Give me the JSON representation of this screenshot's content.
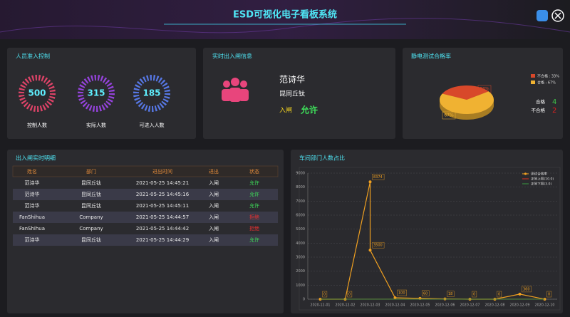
{
  "header": {
    "title": "ESD可视化电子看板系统"
  },
  "access_control": {
    "title": "人员准入控制",
    "gauges": [
      {
        "value": 500,
        "label": "控制人数",
        "color": "#e8456c"
      },
      {
        "value": 315,
        "label": "实际人数",
        "color": "#9b45e6"
      },
      {
        "value": 185,
        "label": "可进入人数",
        "color": "#5a7cf0"
      }
    ]
  },
  "gate_info": {
    "title": "实时出入闸信息",
    "name": "范诗华",
    "department": "昆同丘钛",
    "direction": "入闸",
    "status": "允许"
  },
  "table": {
    "title": "出入闸实时明细",
    "headers": [
      "姓名",
      "部门",
      "进出时间",
      "进出",
      "状态"
    ],
    "rows": [
      [
        "范诗华",
        "昆同丘钛",
        "2021-05-25 14:45:21",
        "入闸",
        "允许"
      ],
      [
        "范诗华",
        "昆同丘钛",
        "2021-05-25 14:45:16",
        "入闸",
        "允许"
      ],
      [
        "范诗华",
        "昆同丘钛",
        "2021-05-25 14:45:11",
        "入闸",
        "允许"
      ],
      [
        "FanShihua",
        "Company",
        "2021-05-25 14:44:57",
        "入闸",
        "拒绝"
      ],
      [
        "FanShihua",
        "Company",
        "2021-05-25 14:44:42",
        "入闸",
        "拒绝"
      ],
      [
        "范诗华",
        "昆同丘钛",
        "2021-05-25 14:44:29",
        "入闸",
        "允许"
      ]
    ],
    "status_colors": [
      "#3ee05a",
      "#3ee05a",
      "#3ee05a",
      "#e83030",
      "#e83030",
      "#3ee05a"
    ]
  },
  "chart_data": [
    {
      "type": "pie",
      "title": "静电测试合格率",
      "categories": [
        "不合格",
        "合格"
      ],
      "values": [
        33,
        67
      ],
      "value_labels": [
        "33%",
        "67%"
      ],
      "colors": [
        "#d8482a",
        "#f0b232"
      ],
      "legend": [
        "不合格 : 33%",
        "合格 : 67%"
      ],
      "counts": [
        {
          "label": "合格",
          "value": 4,
          "color": "#3ec04a"
        },
        {
          "label": "不合格",
          "value": 2,
          "color": "#e02020"
        }
      ]
    },
    {
      "type": "line",
      "title": "车间部门人数占比",
      "categories": [
        "2020-12-01",
        "2020-12-02",
        "2020-12-03",
        "2020-12-04",
        "2020-12-05",
        "2020-12-06",
        "2020-12-07",
        "2020-12-08",
        "2020-12-09",
        "2020-12-10"
      ],
      "series": [
        {
          "name": "测试合格率",
          "color": "#f0a020",
          "x": [
            "2020-12-01",
            "2020-12-02",
            "2020-12-03",
            "2020-12-03",
            "2020-12-04",
            "2020-12-05",
            "2020-12-06",
            "2020-12-07",
            "2020-12-08",
            "2020-12-09",
            "2020-12-10"
          ],
          "values": [
            0,
            0,
            8374,
            3500,
            100,
            60,
            18,
            0,
            0,
            360,
            0
          ]
        },
        {
          "name": "正常上限(10.0)",
          "color": "#e03020",
          "values": [
            10,
            10,
            10,
            10,
            10,
            10,
            10,
            10,
            10,
            10
          ]
        },
        {
          "name": "正常下限(3.0)",
          "color": "#3a9a40",
          "values": [
            3,
            3,
            3,
            3,
            3,
            3,
            3,
            3,
            3,
            3
          ]
        }
      ],
      "ylim": [
        0,
        9000
      ],
      "yticks": [
        0,
        1000,
        2000,
        3000,
        4000,
        5000,
        6000,
        7000,
        8000,
        9000
      ],
      "grid": true,
      "legend_position": "upper right"
    }
  ]
}
